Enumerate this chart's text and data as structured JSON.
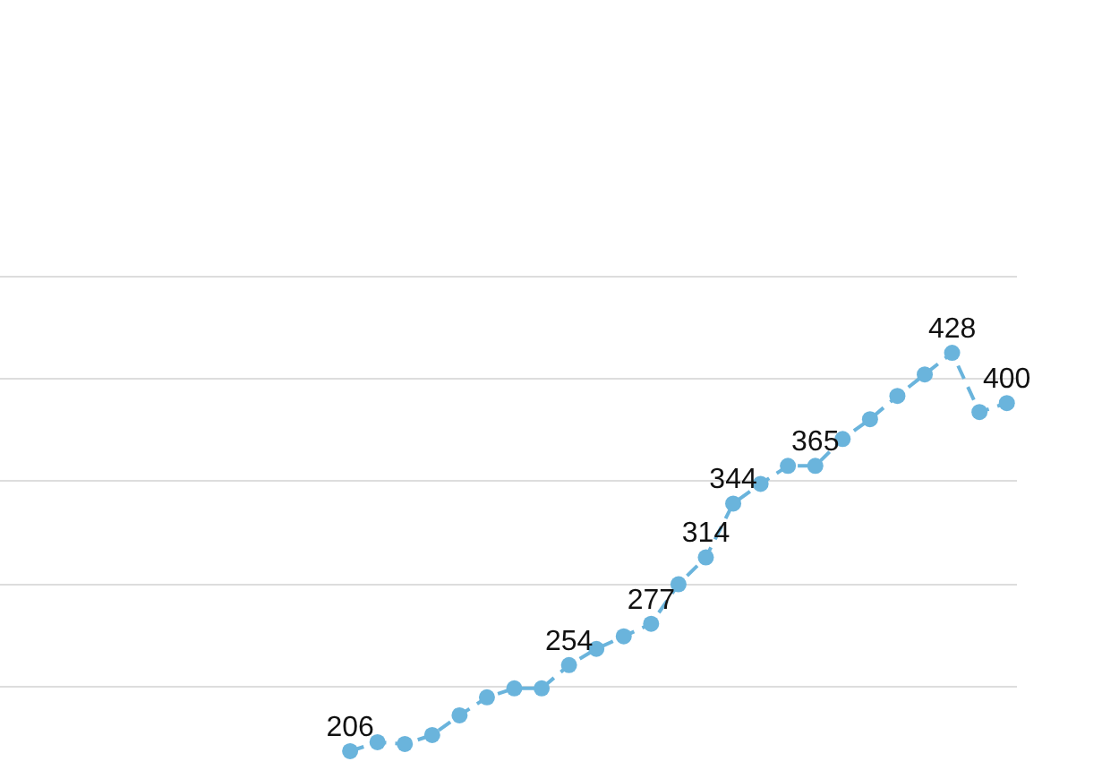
{
  "chart_data": {
    "type": "line",
    "categories": [
      null,
      null,
      null,
      null,
      null,
      null,
      null,
      null,
      null,
      null,
      null,
      null,
      null,
      null,
      null,
      null,
      null,
      null,
      null,
      null,
      null,
      null,
      null,
      null,
      null,
      null,
      null,
      null,
      null,
      null,
      null,
      null,
      null,
      null,
      null,
      null,
      null
    ],
    "series": [
      {
        "color": "#6ab4dc",
        "values": [
          null,
          null,
          null,
          null,
          null,
          null,
          null,
          null,
          null,
          null,
          null,
          null,
          206,
          211,
          210,
          215,
          226,
          236,
          241,
          241,
          254,
          263,
          270,
          277,
          299,
          314,
          344,
          355,
          365,
          365,
          380,
          391,
          404,
          416,
          428,
          395,
          400
        ],
        "value_labels": [
          null,
          null,
          null,
          null,
          null,
          null,
          null,
          null,
          null,
          null,
          null,
          null,
          "206",
          null,
          null,
          null,
          null,
          null,
          null,
          null,
          "254",
          null,
          null,
          "277",
          null,
          "314",
          "344",
          null,
          null,
          "365",
          null,
          null,
          null,
          null,
          "428",
          null,
          "400"
        ]
      }
    ],
    "legend": false,
    "marker": "circle",
    "line_style": "dashed"
  }
}
